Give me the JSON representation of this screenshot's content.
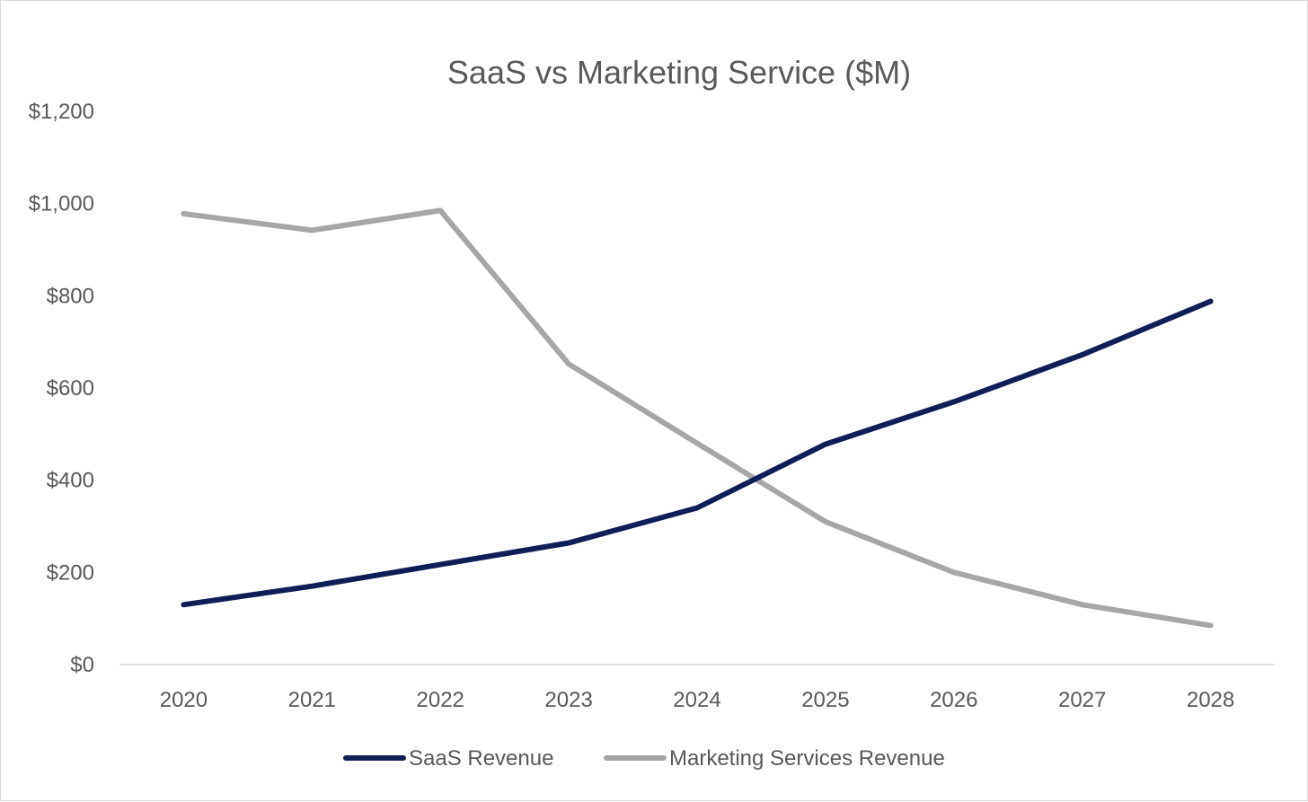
{
  "chart_data": {
    "type": "line",
    "title": "SaaS vs Marketing Service ($M)",
    "xlabel": "",
    "ylabel": "",
    "categories": [
      "2020",
      "2021",
      "2022",
      "2023",
      "2024",
      "2025",
      "2026",
      "2027",
      "2028"
    ],
    "series": [
      {
        "name": "SaaS Revenue",
        "color": "#0f1e56",
        "values": [
          130,
          170,
          217,
          264,
          340,
          478,
          570,
          672,
          788
        ]
      },
      {
        "name": "Marketing Services Revenue",
        "color": "#a6a6a6",
        "values": [
          978,
          942,
          985,
          652,
          480,
          310,
          200,
          130,
          85
        ]
      }
    ],
    "ylim": [
      0,
      1200
    ],
    "yticks": [
      0,
      200,
      400,
      600,
      800,
      1000,
      1200
    ],
    "ytick_labels": [
      "$0",
      "$200",
      "$400",
      "$600",
      "$800",
      "$1,000",
      "$1,200"
    ],
    "grid": false,
    "legend_position": "bottom"
  }
}
